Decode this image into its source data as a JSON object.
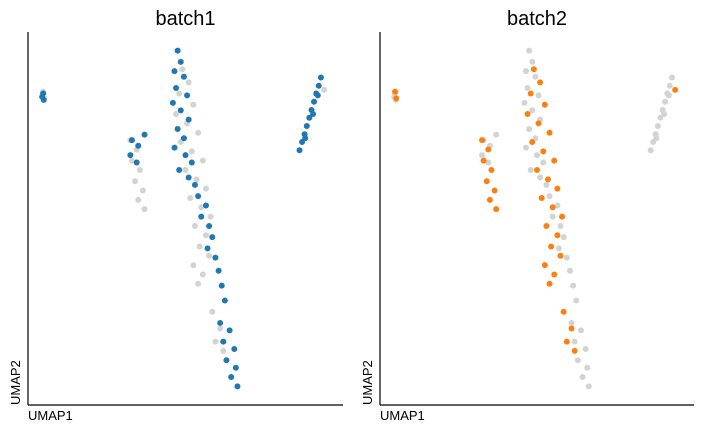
{
  "chart_data": [
    {
      "type": "scatter",
      "title": "batch1",
      "x_label": "UMAP1",
      "y_label": "UMAP2",
      "xlim": [
        0,
        100
      ],
      "ylim": [
        0,
        100
      ],
      "series": [
        {
          "color": "#d3d3d3",
          "x": [
            4.8,
            5.2,
            32.5,
            34.5,
            33.0,
            35.5,
            34.0,
            36.5,
            35.0,
            37.0,
            49.0,
            51.0,
            48.0,
            52.5,
            47.0,
            50.5,
            54.0,
            48.5,
            52.0,
            55.5,
            50.0,
            53.5,
            56.5,
            51.5,
            55.0,
            58.0,
            53.0,
            56.5,
            54.5,
            57.5,
            52.5,
            55.5,
            54.0,
            58.5,
            61.0,
            59.5,
            62.0,
            94.0
          ],
          "y": [
            84.0,
            82.2,
            71.0,
            68.5,
            65.5,
            63.0,
            60.0,
            57.5,
            55.0,
            52.5,
            90.0,
            86.5,
            83.5,
            80.5,
            78.0,
            75.5,
            73.0,
            70.5,
            68.0,
            65.5,
            63.0,
            60.5,
            58.0,
            55.5,
            53.0,
            50.5,
            48.0,
            45.5,
            42.5,
            40.0,
            37.5,
            35.0,
            32.5,
            25.0,
            20.5,
            17.0,
            14.5,
            84.5
          ]
        },
        {
          "color": "#1f77b4",
          "x": [
            4.8,
            5.0,
            4.5,
            86.2,
            87.0,
            87.8,
            88.5,
            89.3,
            90.0,
            90.8,
            91.5,
            92.3,
            93.0,
            88.0,
            90.5,
            92.0,
            47.5,
            48.5,
            46.5,
            49.5,
            47.0,
            50.5,
            46.0,
            48.5,
            51.0,
            47.5,
            49.5,
            46.5,
            50.0,
            52.0,
            48.0,
            51.0,
            53.0,
            33.0,
            35.0,
            32.5,
            34.5,
            37.0,
            54.0,
            56.5,
            55.0,
            57.5,
            58.5,
            57.0,
            59.5,
            60.5,
            61.5,
            62.5,
            61.0,
            64.0,
            62.0,
            65.5,
            63.0,
            66.0,
            64.5,
            66.5
          ],
          "y": [
            83.5,
            81.8,
            82.6,
            68.3,
            70.5,
            72.6,
            74.8,
            77.0,
            79.1,
            81.3,
            83.5,
            85.6,
            87.8,
            71.5,
            78.0,
            83.0,
            95.0,
            92.0,
            89.5,
            88.0,
            85.0,
            83.0,
            81.0,
            79.0,
            76.5,
            74.0,
            71.5,
            69.0,
            67.0,
            65.0,
            63.0,
            61.0,
            59.0,
            71.0,
            69.5,
            67.0,
            65.0,
            72.5,
            56.0,
            53.5,
            50.5,
            48.0,
            45.0,
            42.0,
            39.5,
            36.0,
            32.0,
            28.0,
            22.0,
            20.0,
            17.0,
            15.0,
            12.0,
            10.0,
            7.5,
            5.0
          ]
        }
      ]
    },
    {
      "type": "scatter",
      "title": "batch2",
      "x_label": "UMAP1",
      "y_label": "UMAP2",
      "xlim": [
        0,
        100
      ],
      "ylim": [
        0,
        100
      ],
      "series": [
        {
          "color": "#d3d3d3",
          "x": [
            4.8,
            5.0,
            4.5,
            86.2,
            87.0,
            87.8,
            88.5,
            89.3,
            90.0,
            90.8,
            91.5,
            92.3,
            93.0,
            88.0,
            90.5,
            92.0,
            47.5,
            48.5,
            46.5,
            49.5,
            47.0,
            50.5,
            46.0,
            48.5,
            51.0,
            47.5,
            49.5,
            46.5,
            50.0,
            52.0,
            48.0,
            51.0,
            53.0,
            33.0,
            35.0,
            32.5,
            34.5,
            37.0,
            54.0,
            56.5,
            55.0,
            57.5,
            58.5,
            57.0,
            59.5,
            60.5,
            61.5,
            62.5,
            61.0,
            64.0,
            62.0,
            65.5,
            63.0,
            66.0,
            64.5,
            66.5
          ],
          "y": [
            83.5,
            81.8,
            82.6,
            68.3,
            70.5,
            72.6,
            74.8,
            77.0,
            79.1,
            81.3,
            83.5,
            85.6,
            87.8,
            71.5,
            78.0,
            83.0,
            95.0,
            92.0,
            89.5,
            88.0,
            85.0,
            83.0,
            81.0,
            79.0,
            76.5,
            74.0,
            71.5,
            69.0,
            67.0,
            65.0,
            63.0,
            61.0,
            59.0,
            71.0,
            69.5,
            67.0,
            65.0,
            72.5,
            56.0,
            53.5,
            50.5,
            48.0,
            45.0,
            42.0,
            39.5,
            36.0,
            32.0,
            28.0,
            22.0,
            20.0,
            17.0,
            15.0,
            12.0,
            10.0,
            7.5,
            5.0
          ]
        },
        {
          "color": "#ff7f0e",
          "x": [
            4.8,
            5.2,
            32.5,
            34.5,
            33.0,
            35.5,
            34.0,
            36.5,
            35.0,
            37.0,
            49.0,
            51.0,
            48.0,
            52.5,
            47.0,
            50.5,
            54.0,
            48.5,
            52.0,
            55.5,
            50.0,
            53.5,
            56.5,
            51.5,
            55.0,
            58.0,
            53.0,
            56.5,
            54.5,
            57.5,
            52.5,
            55.5,
            54.0,
            58.5,
            61.0,
            59.5,
            62.0,
            94.0
          ],
          "y": [
            84.0,
            82.2,
            71.0,
            68.5,
            65.5,
            63.0,
            60.0,
            57.5,
            55.0,
            52.5,
            90.0,
            86.5,
            83.5,
            80.5,
            78.0,
            75.5,
            73.0,
            70.5,
            68.0,
            65.5,
            63.0,
            60.5,
            58.0,
            55.5,
            53.0,
            50.5,
            48.0,
            45.5,
            42.5,
            40.0,
            37.5,
            35.0,
            32.5,
            25.0,
            20.5,
            17.0,
            14.5,
            84.5
          ]
        }
      ]
    }
  ]
}
